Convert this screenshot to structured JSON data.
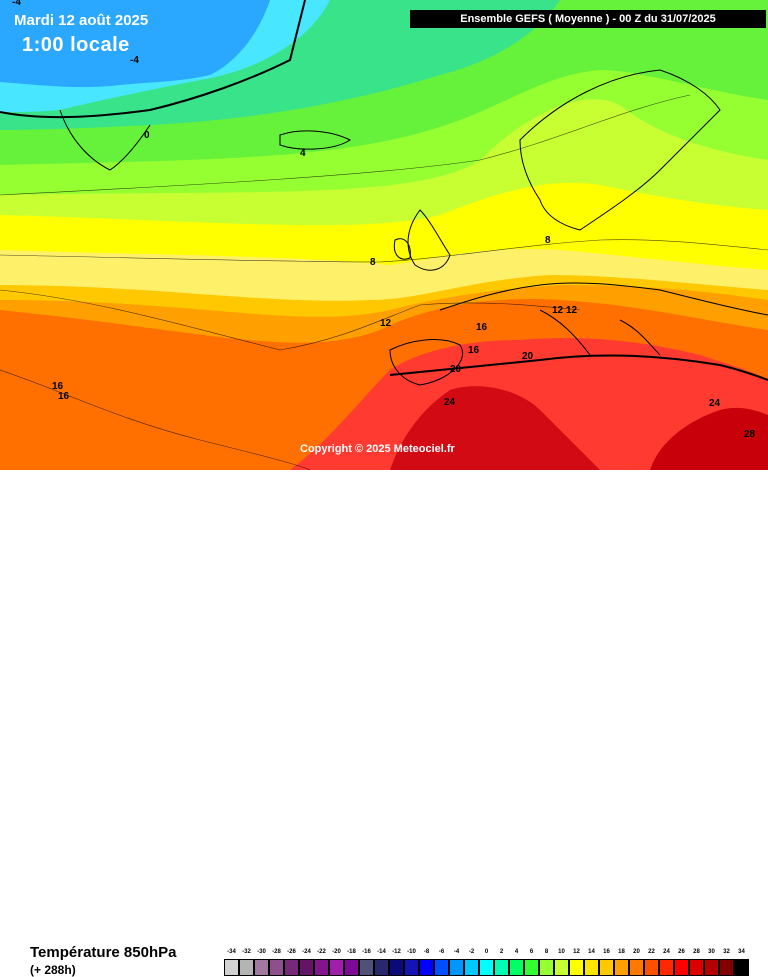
{
  "overlay": {
    "date": "Mardi 12 août 2025",
    "time": "1:00 locale",
    "header": "Ensemble GEFS  ( Moyenne )  -  00 Z du 31/07/2025",
    "copyright": "Copyright © 2025 Meteociel.fr"
  },
  "isotherm_labels": [
    "-4",
    "-4",
    "0",
    "4",
    "8",
    "8",
    "12",
    "12",
    "12",
    "16",
    "16",
    "16",
    "16",
    "20",
    "20",
    "24",
    "24",
    "28"
  ],
  "footer": {
    "title": "Température 850hPa",
    "subtitle": "(+ 288h)"
  },
  "scale": {
    "values": [
      "-34",
      "-32",
      "-30",
      "-28",
      "-26",
      "-24",
      "-22",
      "-20",
      "-18",
      "-16",
      "-14",
      "-12",
      "-10",
      "-8",
      "-6",
      "-4",
      "-2",
      "0",
      "2",
      "4",
      "6",
      "8",
      "10",
      "12",
      "14",
      "16",
      "18",
      "20",
      "22",
      "24",
      "26",
      "28",
      "30",
      "32",
      "34"
    ],
    "colors": [
      "#d2d2d2",
      "#b4b4b4",
      "#a078a0",
      "#8c508c",
      "#782878",
      "#641464",
      "#82148c",
      "#a01eaa",
      "#7d0a96",
      "#505078",
      "#28286e",
      "#0a0a78",
      "#1414b4",
      "#0000ff",
      "#0050ff",
      "#0096ff",
      "#00c8ff",
      "#00ffff",
      "#00ffb4",
      "#00ff64",
      "#32ff32",
      "#96ff32",
      "#c8ff32",
      "#ffff00",
      "#ffe600",
      "#ffc800",
      "#ffa000",
      "#ff7800",
      "#ff5000",
      "#ff2800",
      "#ff0000",
      "#dc0000",
      "#b40000",
      "#820000",
      "#000000"
    ]
  },
  "colors": {
    "band_cold": "#2aa8ff",
    "band_cyan": "#49e6ff",
    "band_green_cool": "#38e38a",
    "band_green": "#66f23a",
    "band_yellow_green": "#c8ff32",
    "band_yellow": "#ffff00",
    "band_pale_yellow": "#fff06a",
    "band_orange_light": "#ffc800",
    "band_orange": "#ffa000",
    "band_dark_orange": "#ff7000",
    "band_red": "#ff2830",
    "band_dark_red": "#c8000a"
  }
}
